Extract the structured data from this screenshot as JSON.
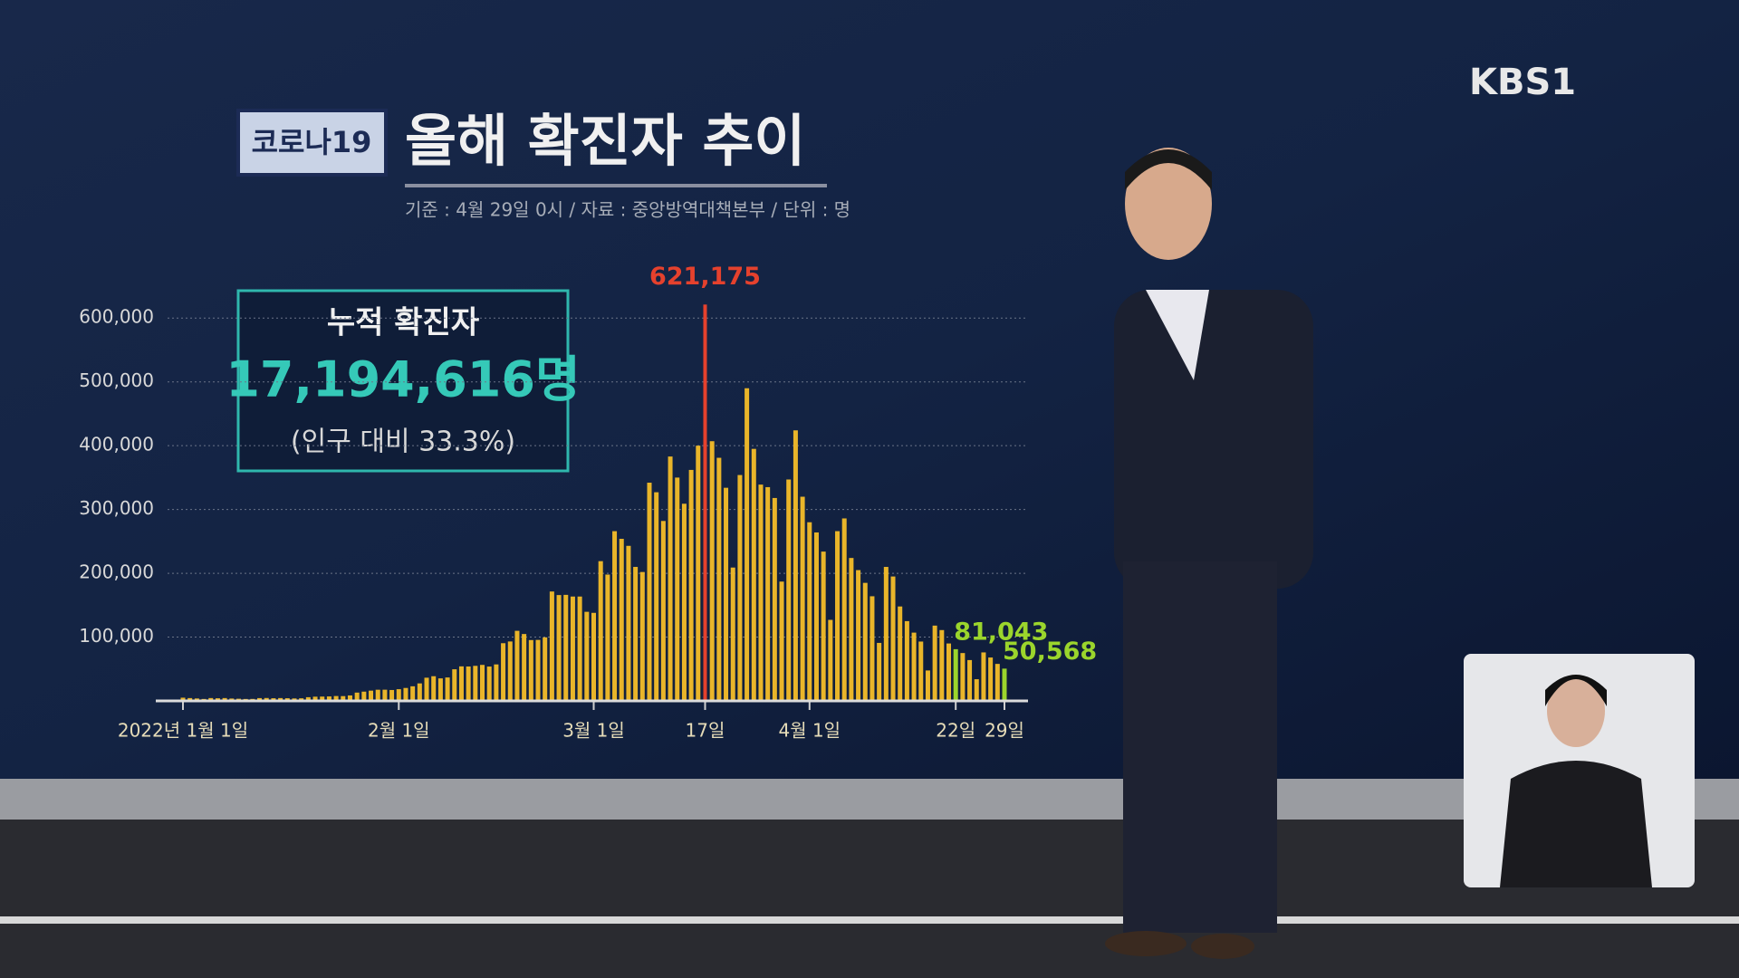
{
  "logo": "KBS1",
  "chart_data": {
    "type": "bar",
    "badge": "코로나19",
    "title": "올해 확진자 추이",
    "subtitle": "기준 : 4월 29일 0시  /  자료 : 중앙방역대책본부 / 단위 : 명",
    "annotation": {
      "title": "누적 확진자",
      "value": "17,194,616명",
      "note": "(인구 대비 33.3%)"
    },
    "categories": [
      "2022년 1월 1일",
      null,
      null,
      null,
      null,
      null,
      null,
      null,
      null,
      null,
      null,
      null,
      null,
      null,
      null,
      null,
      null,
      null,
      null,
      null,
      null,
      null,
      null,
      null,
      null,
      null,
      null,
      null,
      null,
      null,
      null,
      "2월 1일",
      null,
      null,
      null,
      null,
      null,
      null,
      null,
      null,
      null,
      null,
      null,
      null,
      null,
      null,
      null,
      null,
      null,
      null,
      null,
      null,
      null,
      null,
      null,
      null,
      null,
      null,
      null,
      "3월 1일",
      null,
      null,
      null,
      null,
      null,
      null,
      null,
      null,
      null,
      null,
      null,
      null,
      null,
      null,
      null,
      "17일",
      null,
      null,
      null,
      null,
      null,
      null,
      null,
      null,
      null,
      null,
      null,
      null,
      null,
      null,
      "4월 1일",
      null,
      null,
      null,
      null,
      null,
      null,
      null,
      null,
      null,
      null,
      null,
      null,
      null,
      null,
      null,
      null,
      null,
      null,
      null,
      null,
      "22일",
      null,
      null,
      null,
      null,
      null,
      null,
      "29일"
    ],
    "values": [
      5037,
      4416,
      3832,
      3023,
      4443,
      4125,
      4443,
      3717,
      3378,
      3005,
      3094,
      4387,
      4541,
      4165,
      4423,
      4192,
      3857,
      4071,
      5804,
      6602,
      6767,
      7008,
      7628,
      7511,
      8570,
      13012,
      14518,
      16093,
      17514,
      17541,
      17079,
      18342,
      20270,
      22907,
      27443,
      36347,
      38689,
      35286,
      36719,
      49567,
      54121,
      53926,
      54941,
      56431,
      53838,
      57175,
      90443,
      93135,
      109831,
      104829,
      95362,
      95604,
      99573,
      171452,
      165890,
      166209,
      163566,
      163565,
      139626,
      138000,
      219000,
      198000,
      266000,
      254000,
      243000,
      210000,
      202000,
      342000,
      327000,
      282000,
      383000,
      350000,
      309000,
      362000,
      400000,
      621175,
      407000,
      381000,
      334000,
      209000,
      354000,
      490000,
      395000,
      339000,
      335000,
      318000,
      187000,
      347000,
      424000,
      320000,
      280000,
      264000,
      234000,
      127000,
      266000,
      286000,
      224000,
      205000,
      185000,
      164000,
      90900,
      210000,
      195000,
      148000,
      125000,
      107000,
      93000,
      47700,
      118000,
      111000,
      90000,
      81043,
      75000,
      64000,
      34000,
      76000,
      68000,
      58000,
      50568
    ],
    "value_labels": [
      null,
      null,
      null,
      null,
      null,
      null,
      null,
      null,
      null,
      null,
      null,
      null,
      null,
      null,
      null,
      null,
      null,
      null,
      null,
      null,
      null,
      null,
      null,
      null,
      null,
      null,
      null,
      null,
      null,
      null,
      null,
      null,
      null,
      null,
      null,
      null,
      null,
      null,
      null,
      null,
      null,
      null,
      null,
      null,
      null,
      null,
      null,
      null,
      null,
      null,
      null,
      null,
      null,
      null,
      null,
      null,
      null,
      null,
      null,
      null,
      null,
      null,
      null,
      null,
      null,
      null,
      null,
      null,
      null,
      null,
      null,
      null,
      null,
      null,
      null,
      "621,175",
      null,
      null,
      null,
      null,
      null,
      null,
      null,
      null,
      null,
      null,
      null,
      null,
      null,
      null,
      null,
      null,
      null,
      null,
      null,
      null,
      null,
      null,
      null,
      null,
      null,
      null,
      null,
      null,
      null,
      null,
      null,
      null,
      null,
      null,
      null,
      "81,043",
      null,
      null,
      null,
      null,
      null,
      null,
      "50,568"
    ],
    "color": "#e9b52a",
    "peak_color": "#e5412d",
    "highlight_color": "#9bd52c",
    "ylim": [
      0,
      650000
    ],
    "yticks": [
      {
        "value": 100000,
        "label": "100,000"
      },
      {
        "value": 200000,
        "label": "200,000"
      },
      {
        "value": 300000,
        "label": "300,000"
      },
      {
        "value": 400000,
        "label": "400,000"
      },
      {
        "value": 500000,
        "label": "500,000"
      },
      {
        "value": 600000,
        "label": "600,000"
      }
    ],
    "grid": true
  }
}
